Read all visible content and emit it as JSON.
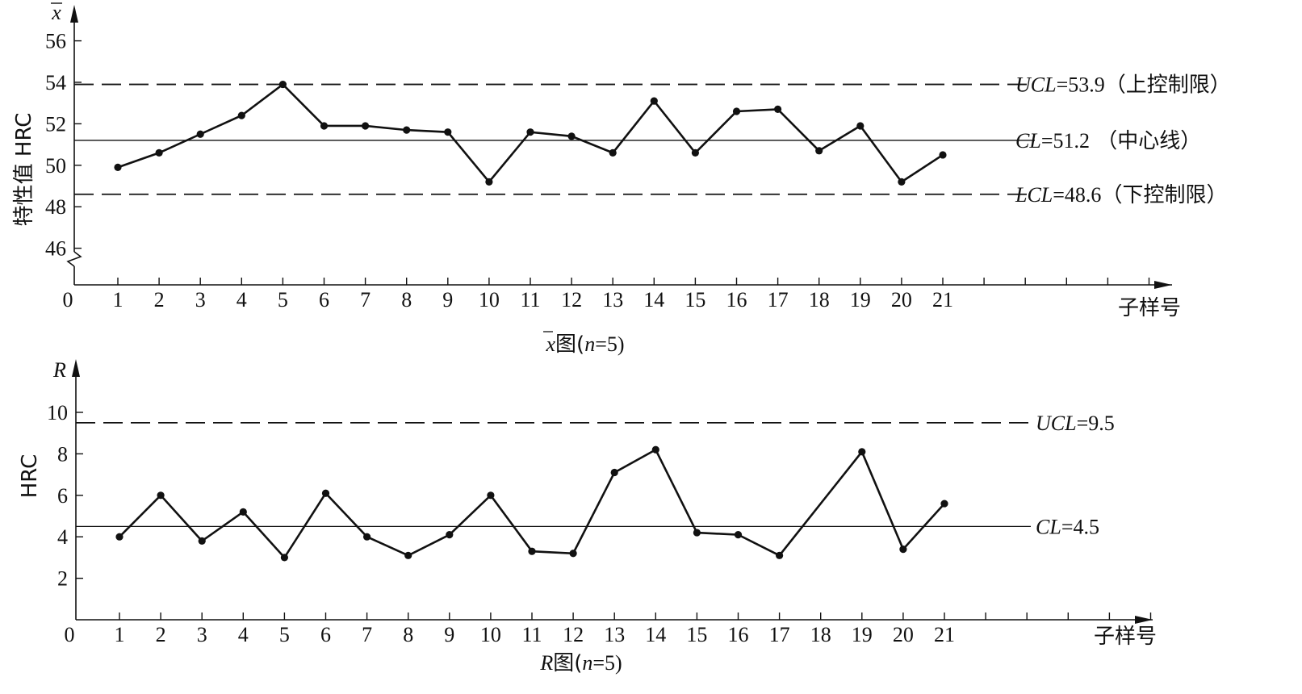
{
  "chart_data": [
    {
      "type": "line",
      "y_symbol": "x",
      "ylabel": "特性值  HRC",
      "xlabel": "子样号",
      "caption": {
        "symbol": "x",
        "text": "图(",
        "n": "n",
        "rest": "=5)"
      },
      "x_origin_label": "0",
      "x_ticks": [
        "1",
        "2",
        "3",
        "4",
        "5",
        "6",
        "7",
        "8",
        "9",
        "10",
        "11",
        "12",
        "13",
        "14",
        "15",
        "16",
        "17",
        "18",
        "19",
        "20",
        "21"
      ],
      "extra_x_ticks": 5,
      "y_ticks": [
        "46",
        "48",
        "50",
        "52",
        "54",
        "56"
      ],
      "y_axis_break": true,
      "ylim": [
        45,
        57
      ],
      "x": [
        1,
        2,
        3,
        4,
        5,
        6,
        7,
        8,
        9,
        10,
        11,
        12,
        13,
        14,
        15,
        16,
        17,
        18,
        19,
        20,
        21
      ],
      "values": [
        49.9,
        50.6,
        51.5,
        52.4,
        53.9,
        51.9,
        51.9,
        51.7,
        51.6,
        49.2,
        51.6,
        51.4,
        50.6,
        53.1,
        50.6,
        52.6,
        52.7,
        50.7,
        51.9,
        49.2,
        50.5
      ],
      "control_lines": [
        {
          "name": "UCL",
          "value": 53.9,
          "eq": "=53.9",
          "note": "（上控制限）",
          "style": "dashed"
        },
        {
          "name": "CL",
          "value": 51.2,
          "eq": "=51.2",
          "note": " （中心线）",
          "style": "solid"
        },
        {
          "name": "LCL",
          "value": 48.6,
          "eq": "=48.6",
          "note": "（下控制限）",
          "style": "dashed"
        }
      ]
    },
    {
      "type": "line",
      "y_symbol": "R",
      "ylabel": "HRC",
      "xlabel": "子样号",
      "caption": {
        "symbol": "R",
        "text": "图(",
        "n": "n",
        "rest": "=5)"
      },
      "x_origin_label": "0",
      "x_ticks": [
        "1",
        "2",
        "3",
        "4",
        "5",
        "6",
        "7",
        "8",
        "9",
        "10",
        "11",
        "12",
        "13",
        "14",
        "15",
        "16",
        "17",
        "18",
        "19",
        "20",
        "21"
      ],
      "extra_x_ticks": 5,
      "y_ticks": [
        "2",
        "4",
        "6",
        "8",
        "10"
      ],
      "ylim": [
        0,
        12
      ],
      "x": [
        1,
        2,
        3,
        4,
        5,
        6,
        7,
        8,
        9,
        10,
        11,
        12,
        13,
        14,
        15,
        16,
        17,
        18,
        19,
        20,
        21
      ],
      "values": [
        4.0,
        6.0,
        3.8,
        5.2,
        3.0,
        6.1,
        4.0,
        3.1,
        4.1,
        6.0,
        3.3,
        3.2,
        7.1,
        8.2,
        4.2,
        4.1,
        3.1,
        null,
        8.1,
        3.4,
        5.6
      ],
      "control_lines": [
        {
          "name": "UCL",
          "value": 9.5,
          "eq": "=9.5",
          "note": "",
          "style": "dashed"
        },
        {
          "name": "CL",
          "value": 4.5,
          "eq": "=4.5",
          "note": "",
          "style": "solid"
        }
      ]
    }
  ]
}
